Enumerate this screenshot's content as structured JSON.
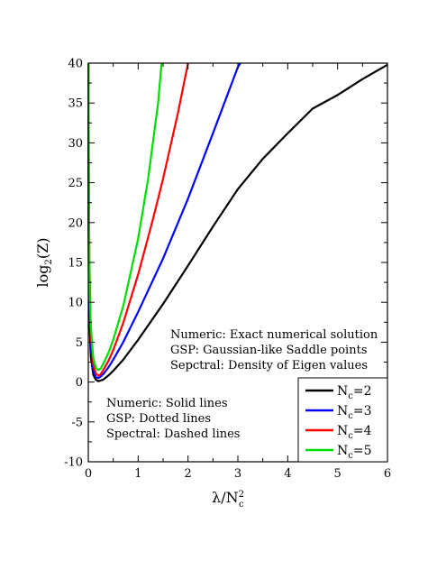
{
  "chart_data": {
    "type": "line",
    "xlabel": {
      "main": "λ/N",
      "sup": "2",
      "sub": "c"
    },
    "ylabel": {
      "main": "log",
      "sub": "2",
      "rest": "(Z)"
    },
    "xlim": [
      0,
      6
    ],
    "ylim": [
      -10,
      40
    ],
    "x_ticks": [
      0,
      1,
      2,
      3,
      4,
      5,
      6
    ],
    "y_ticks": [
      -10,
      -5,
      0,
      5,
      10,
      15,
      20,
      25,
      30,
      35,
      40
    ],
    "grid": false,
    "legend_position": "bottom-right",
    "annotations": {
      "method_notes": [
        "Numeric: Exact numerical solution",
        "GSP: Gaussian-like Saddle points",
        "Sepctral: Density of Eigen values"
      ],
      "line_style_notes": [
        "Numeric: Solid lines",
        "GSP: Dotted lines",
        "Spectral: Dashed lines"
      ]
    },
    "series": [
      {
        "name": "N=2",
        "label_main": "N",
        "label_sub": "c",
        "label_rest": "=2",
        "color": "#000000",
        "x": [
          0.005,
          0.01,
          0.02,
          0.05,
          0.1,
          0.15,
          0.2,
          0.3,
          0.4,
          0.5,
          0.7,
          1.0,
          1.5,
          2.0,
          2.5,
          3.0,
          3.5,
          4.0,
          4.5,
          5.0,
          5.5,
          6.0
        ],
        "y": [
          20,
          14,
          8,
          3.2,
          0.9,
          0.3,
          0.1,
          0.3,
          0.8,
          1.4,
          2.8,
          5.3,
          9.8,
          14.6,
          19.5,
          24.2,
          28.0,
          31.2,
          34.3,
          36.0,
          38.0,
          39.8
        ]
      },
      {
        "name": "N=3",
        "label_main": "N",
        "label_sub": "c",
        "label_rest": "=3",
        "color": "#0000ff",
        "x": [
          0.005,
          0.01,
          0.02,
          0.05,
          0.1,
          0.15,
          0.2,
          0.25,
          0.3,
          0.4,
          0.5,
          0.7,
          1.0,
          1.5,
          2.0,
          2.5,
          3.0,
          3.05
        ],
        "y": [
          30,
          21,
          12,
          4.5,
          1.5,
          0.6,
          0.5,
          0.7,
          1.0,
          1.8,
          2.8,
          5.0,
          8.8,
          15.5,
          23.0,
          31.2,
          39.5,
          40
        ]
      },
      {
        "name": "N=4",
        "label_main": "N",
        "label_sub": "c",
        "label_rest": "=4",
        "color": "#ff0000",
        "x": [
          0.005,
          0.01,
          0.02,
          0.05,
          0.1,
          0.15,
          0.2,
          0.25,
          0.3,
          0.4,
          0.5,
          0.7,
          1.0,
          1.3,
          1.5,
          1.8,
          2.0
        ],
        "y": [
          38,
          28,
          16,
          6.0,
          2.2,
          1.1,
          0.8,
          1.0,
          1.5,
          2.6,
          4.0,
          7.4,
          13.5,
          20.5,
          25.5,
          33.8,
          40
        ]
      },
      {
        "name": "N=5",
        "label_main": "N",
        "label_sub": "c",
        "label_rest": "=5",
        "color": "#00dd00",
        "x": [
          0.004,
          0.008,
          0.015,
          0.03,
          0.05,
          0.1,
          0.15,
          0.2,
          0.25,
          0.3,
          0.4,
          0.5,
          0.7,
          1.0,
          1.2,
          1.4,
          1.47
        ],
        "y": [
          40,
          30,
          20,
          11,
          7.0,
          3.0,
          1.8,
          1.5,
          1.7,
          2.3,
          3.6,
          5.3,
          9.5,
          18.0,
          25.5,
          35.0,
          40
        ]
      }
    ]
  }
}
